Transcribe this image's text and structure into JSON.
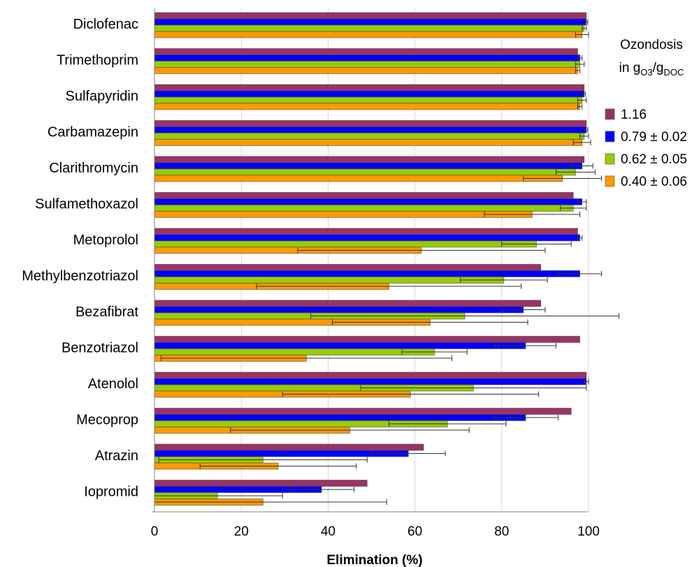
{
  "chart_data": {
    "type": "bar",
    "orientation": "horizontal",
    "categories": [
      "Diclofenac",
      "Trimethoprim",
      "Sulfapyridin",
      "Carbamazepin",
      "Clarithromycin",
      "Sulfamethoxazol",
      "Metoprolol",
      "Methylbenzotriazol",
      "Bezafibrat",
      "Benzotriazol",
      "Atenolol",
      "Mecoprop",
      "Atrazin",
      "Iopromid"
    ],
    "series": [
      {
        "name": "1.16",
        "color": "#993366",
        "values": [
          99.5,
          97.5,
          99,
          99.5,
          99,
          96.5,
          97.5,
          89,
          89,
          98,
          99.5,
          96,
          62,
          49
        ]
      },
      {
        "name": "0.79 ± 0.02",
        "color": "#0000ff",
        "values": [
          99.5,
          98,
          99,
          99.5,
          98.5,
          98.5,
          98,
          98,
          85,
          85.5,
          99.5,
          85.5,
          58.5,
          38.5
        ],
        "err": [
          0.3,
          0.5,
          0.3,
          0.3,
          2.5,
          1.0,
          0.5,
          5.0,
          5.0,
          7.0,
          0.5,
          7.5,
          8.5,
          7.5
        ]
      },
      {
        "name": "0.62 ± 0.05",
        "color": "#99cc00",
        "values": [
          99,
          98,
          98.5,
          99,
          97,
          96.5,
          88,
          80.5,
          71.5,
          64.5,
          73.5,
          67.5,
          25,
          14.5
        ],
        "err": [
          0.5,
          1.0,
          1.0,
          1.0,
          4.5,
          3.0,
          8.0,
          10.0,
          35.5,
          7.5,
          26,
          13.5,
          24,
          15
        ]
      },
      {
        "name": "0.40 ± 0.06",
        "color": "#ff9900",
        "values": [
          98.5,
          97.5,
          98,
          98.5,
          94,
          87,
          61.5,
          54,
          63.5,
          35,
          59,
          45,
          28.5,
          25
        ],
        "err": [
          1.5,
          0.5,
          0.5,
          2.0,
          9.0,
          11.0,
          28.5,
          30.5,
          22.5,
          33.5,
          29.5,
          27.5,
          18,
          28.5
        ]
      }
    ],
    "xlabel": "Elimination (%)",
    "ylabel": "",
    "xlim": [
      0,
      100
    ],
    "xticks": [
      "0",
      "20",
      "40",
      "60",
      "80",
      "100"
    ],
    "grid": "vertical",
    "legend": {
      "title_line1": "Ozondosis",
      "title_line2": "in gO3/gDOC",
      "position": "right"
    }
  }
}
